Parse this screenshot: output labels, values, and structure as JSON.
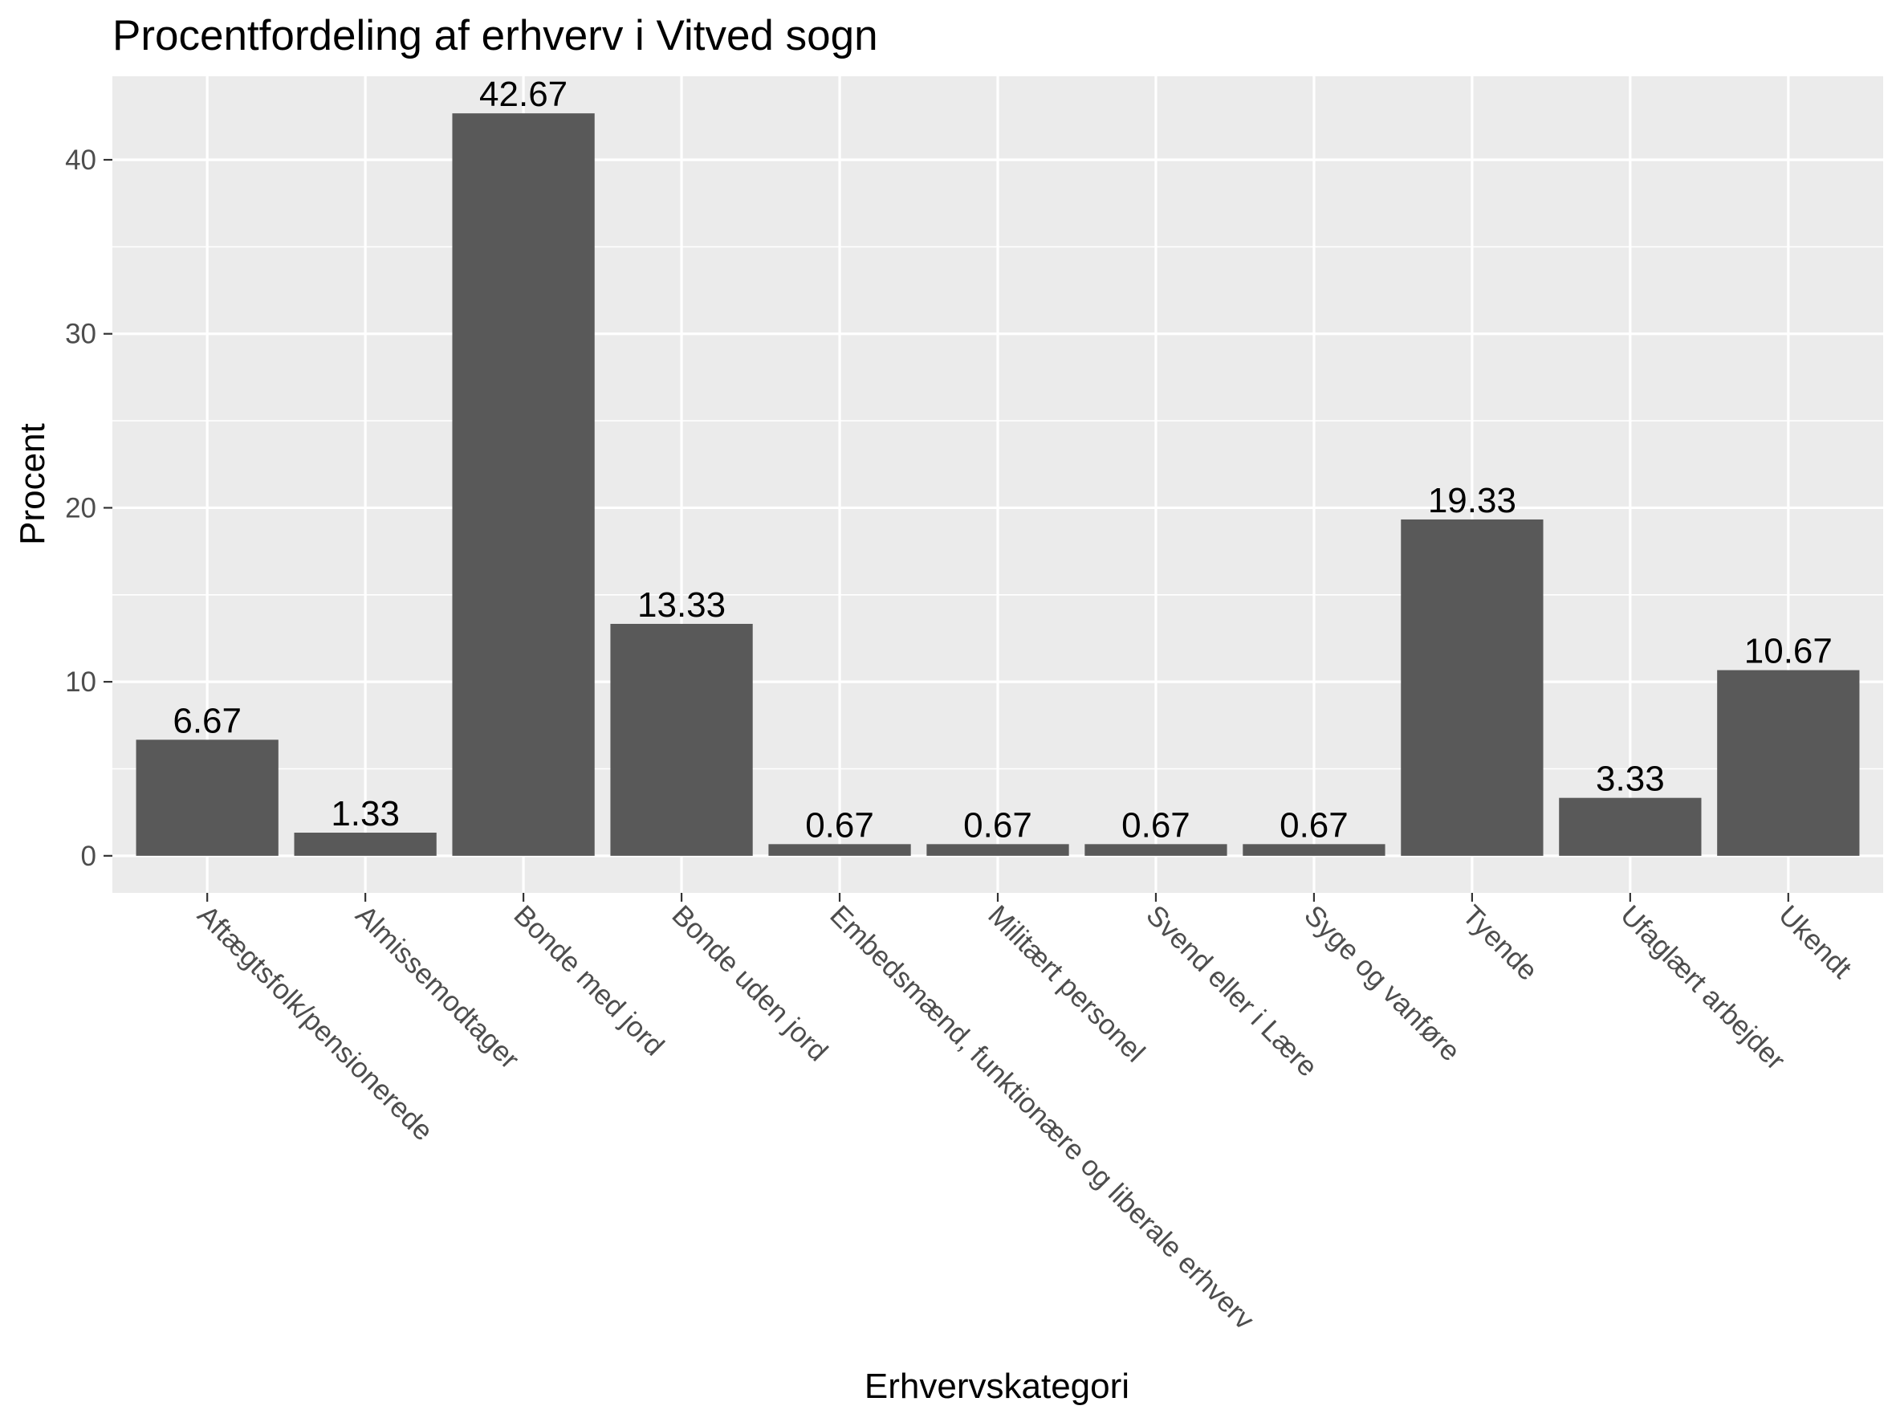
{
  "chart_data": {
    "type": "bar",
    "title": "Procentfordeling af erhverv i Vitved sogn",
    "xlabel": "Erhvervskategori",
    "ylabel": "Procent",
    "categories": [
      "Aftægtsfolk/pensionerede",
      "Almissemodtager",
      "Bonde med jord",
      "Bonde uden jord",
      "Embedsmænd, funktionære og liberale erhverv",
      "Militært personel",
      "Svend eller i Lære",
      "Syge og vanføre",
      "Tyende",
      "Ufaglært arbejder",
      "Ukendt"
    ],
    "values": [
      6.67,
      1.33,
      42.67,
      13.33,
      0.67,
      0.67,
      0.67,
      0.67,
      19.33,
      3.33,
      10.67
    ],
    "value_labels": [
      "6.67",
      "1.33",
      "42.67",
      "13.33",
      "0.67",
      "0.67",
      "0.67",
      "0.67",
      "19.33",
      "3.33",
      "10.67"
    ],
    "y_ticks": [
      0,
      10,
      20,
      30,
      40
    ],
    "y_tick_labels": [
      "0",
      "10",
      "20",
      "30",
      "40"
    ],
    "ylim": [
      -2.13,
      44.8
    ],
    "grid": true,
    "legend": "none",
    "colors": {
      "bar": "#595959",
      "panel": "#ebebeb",
      "grid": "#ffffff",
      "tick_text": "#4d4d4d",
      "tick_mark": "#333333"
    }
  }
}
